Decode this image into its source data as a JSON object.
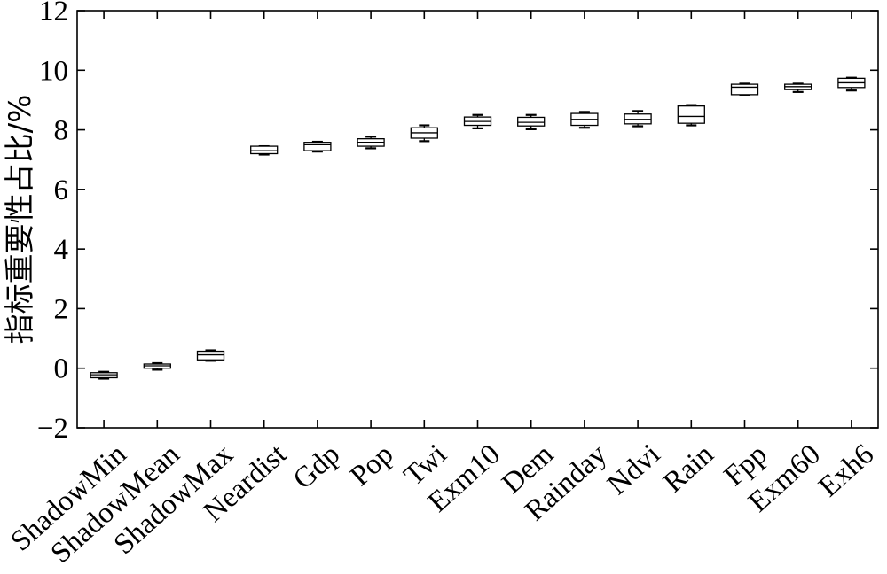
{
  "chart_data": {
    "type": "box",
    "title": "",
    "xlabel": "",
    "ylabel": "指标重要性占比/%",
    "ylim": [
      -2,
      12
    ],
    "yticks": [
      -2,
      0,
      2,
      4,
      6,
      8,
      10,
      12
    ],
    "ytick_labels": [
      "−2",
      "0",
      "2",
      "4",
      "6",
      "8",
      "10",
      "12"
    ],
    "grid": false,
    "legend": "none",
    "box_color": "#000000",
    "categories": [
      "ShadowMin",
      "ShadowMean",
      "ShadowMax",
      "Neardist",
      "Gdp",
      "Pop",
      "Twi",
      "Exm10",
      "Dem",
      "Rainday",
      "Ndvi",
      "Rain",
      "Fpp",
      "Exm60",
      "Exh6"
    ],
    "boxes": [
      {
        "category": "ShadowMin",
        "min": -0.35,
        "q1": -0.32,
        "median": -0.22,
        "q3": -0.15,
        "max": -0.12
      },
      {
        "category": "ShadowMean",
        "min": -0.05,
        "q1": 0.0,
        "median": 0.08,
        "q3": 0.14,
        "max": 0.17
      },
      {
        "category": "ShadowMax",
        "min": 0.25,
        "q1": 0.28,
        "median": 0.45,
        "q3": 0.57,
        "max": 0.6
      },
      {
        "category": "Neardist",
        "min": 7.17,
        "q1": 7.2,
        "median": 7.3,
        "q3": 7.45,
        "max": 7.45
      },
      {
        "category": "Gdp",
        "min": 7.27,
        "q1": 7.3,
        "median": 7.5,
        "q3": 7.58,
        "max": 7.6
      },
      {
        "category": "Pop",
        "min": 7.38,
        "q1": 7.45,
        "median": 7.58,
        "q3": 7.7,
        "max": 7.77
      },
      {
        "category": "Twi",
        "min": 7.62,
        "q1": 7.72,
        "median": 7.9,
        "q3": 8.07,
        "max": 8.15
      },
      {
        "category": "Exm10",
        "min": 8.05,
        "q1": 8.15,
        "median": 8.28,
        "q3": 8.43,
        "max": 8.5
      },
      {
        "category": "Dem",
        "min": 8.02,
        "q1": 8.13,
        "median": 8.25,
        "q3": 8.42,
        "max": 8.5
      },
      {
        "category": "Rainday",
        "min": 8.07,
        "q1": 8.15,
        "median": 8.35,
        "q3": 8.55,
        "max": 8.6
      },
      {
        "category": "Ndvi",
        "min": 8.12,
        "q1": 8.2,
        "median": 8.35,
        "q3": 8.53,
        "max": 8.63
      },
      {
        "category": "Rain",
        "min": 8.15,
        "q1": 8.22,
        "median": 8.45,
        "q3": 8.8,
        "max": 8.83
      },
      {
        "category": "Fpp",
        "min": 9.18,
        "q1": 9.18,
        "median": 9.43,
        "q3": 9.53,
        "max": 9.55
      },
      {
        "category": "Exm60",
        "min": 9.27,
        "q1": 9.35,
        "median": 9.45,
        "q3": 9.53,
        "max": 9.55
      },
      {
        "category": "Exh6",
        "min": 9.32,
        "q1": 9.42,
        "median": 9.58,
        "q3": 9.73,
        "max": 9.75
      }
    ]
  }
}
